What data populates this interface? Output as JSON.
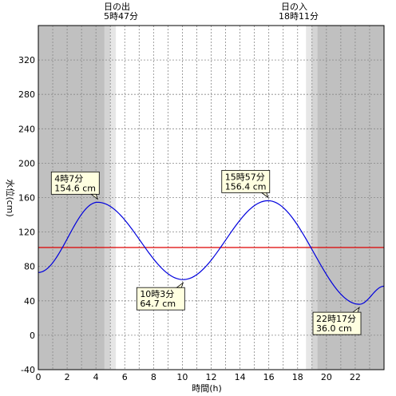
{
  "chart_data": {
    "type": "line",
    "title": "",
    "xlabel": "時間(h)",
    "ylabel": "水位(cm)",
    "xlim": [
      0,
      24
    ],
    "ylim": [
      -40,
      360
    ],
    "x_ticks": [
      0,
      2,
      4,
      6,
      8,
      10,
      12,
      14,
      16,
      18,
      20,
      22
    ],
    "y_ticks": [
      -40,
      0,
      40,
      80,
      120,
      160,
      200,
      240,
      280,
      320
    ],
    "grid": true,
    "legend": "none",
    "series": [
      {
        "color": "#0000dd",
        "points": [
          [
            0,
            73
          ],
          [
            4.117,
            154.6
          ],
          [
            10.05,
            64.7
          ],
          [
            15.95,
            156.4
          ],
          [
            22.283,
            36.0
          ],
          [
            24,
            57
          ]
        ]
      }
    ],
    "reference_line": {
      "value": 102,
      "color": "#dd0000"
    },
    "sunrise": {
      "label": "日の出",
      "time": "5時47分",
      "hour": 5.783
    },
    "sunset": {
      "label": "日の入",
      "time": "18時11分",
      "hour": 18.183
    },
    "annotations": [
      {
        "time": "4時7分",
        "value": "154.6 cm",
        "hour": 4.117,
        "level": 154.6,
        "side": "above"
      },
      {
        "time": "10時3分",
        "value": "64.7 cm",
        "hour": 10.05,
        "level": 64.7,
        "side": "below"
      },
      {
        "time": "15時57分",
        "value": "156.4 cm",
        "hour": 15.95,
        "level": 156.4,
        "side": "above"
      },
      {
        "time": "22時17分",
        "value": "36.0 cm",
        "hour": 22.283,
        "level": 36.0,
        "side": "below"
      }
    ],
    "colors": {
      "night": "#c0c0c0",
      "twilight_dark": "#d4d4d4",
      "twilight_light": "#e6e6e6",
      "day": "#ffffff",
      "callout_fill": "#ffffe0"
    }
  }
}
